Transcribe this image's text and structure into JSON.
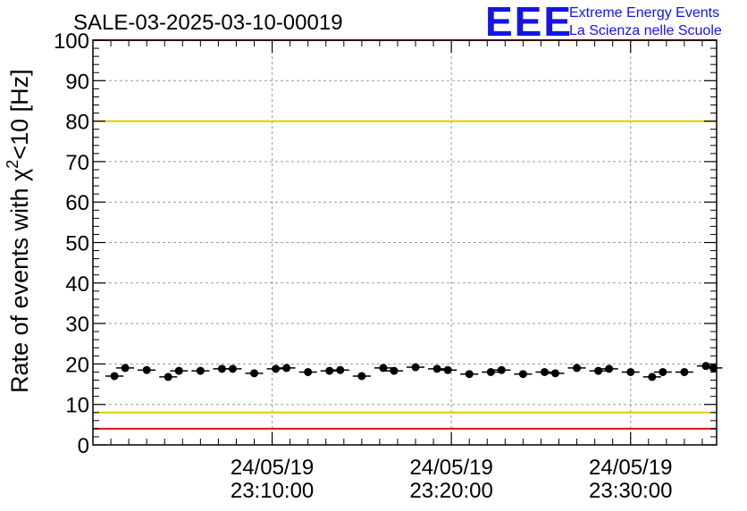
{
  "header": {
    "title": "SALE-03-2025-03-10-00019",
    "logo_mark": "EEE",
    "logo_line1": "Extreme Energy Events",
    "logo_line2": "La Scienza nelle Scuole"
  },
  "chart_data": {
    "type": "scatter",
    "title": "SALE-03-2025-03-10-00019",
    "ylabel": {
      "prefix": "Rate of events with χ",
      "superscript": "2",
      "suffix": "<10 [Hz]"
    },
    "ylim": [
      0,
      100
    ],
    "y_ticks": [
      0,
      10,
      20,
      30,
      40,
      50,
      60,
      70,
      80,
      90,
      100
    ],
    "x_ticks": [
      {
        "date": "24/05/19",
        "time": "23:10:00"
      },
      {
        "date": "24/05/19",
        "time": "23:20:00"
      },
      {
        "date": "24/05/19",
        "time": "23:30:00"
      }
    ],
    "xlim_minutes": [
      23.0,
      23.58
    ],
    "grid": true,
    "reference_lines": [
      {
        "value": 80,
        "color": "#e6c800"
      },
      {
        "value": 8,
        "color": "#e6c800"
      },
      {
        "value": 4,
        "color": "#e01010"
      },
      {
        "value": 100,
        "color": "#e01010"
      }
    ],
    "marker_color": "#000000",
    "series": [
      {
        "x_minutes": [
          23.02,
          23.03,
          23.05,
          23.07,
          23.08,
          23.1,
          23.12,
          23.13,
          23.15,
          23.17,
          23.18,
          23.2,
          23.22,
          23.23,
          23.25,
          23.27,
          23.28,
          23.3,
          23.32,
          23.33,
          23.35,
          23.37,
          23.38,
          23.4,
          23.42,
          23.43,
          23.45,
          23.47,
          23.48,
          23.5,
          23.52,
          23.53,
          23.55,
          23.57
        ],
        "values": [
          17.0,
          19.0,
          18.5,
          16.8,
          18.3,
          18.3,
          18.8,
          18.8,
          17.7,
          18.8,
          19.0,
          18.0,
          18.3,
          18.5,
          17.0,
          19.0,
          18.3,
          19.2,
          18.8,
          18.5,
          17.5,
          18.0,
          18.5,
          17.5,
          18.0,
          17.7,
          19.0,
          18.3,
          18.8,
          18.0,
          16.8,
          18.0,
          18.0,
          19.5
        ],
        "values_tail": [
          19.0
        ]
      }
    ]
  }
}
